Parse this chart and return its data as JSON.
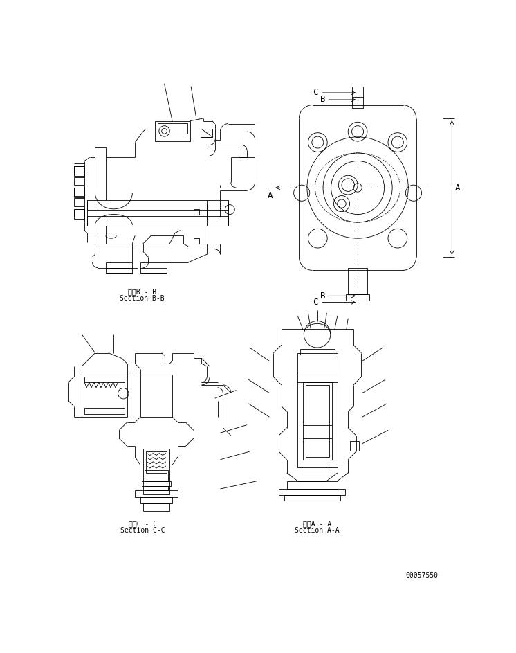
{
  "bg_color": "#ffffff",
  "line_color": "#000000",
  "fig_width": 7.46,
  "fig_height": 9.43,
  "dpi": 100,
  "label_bb_jp": "断面B - B",
  "label_bb_en": "Section B-B",
  "label_cc_jp": "断面C - C",
  "label_cc_en": "Section C-C",
  "label_aa_jp": "断面A - A",
  "label_aa_en": "Section A-A",
  "part_number": "00057550",
  "font_size_label": 7,
  "font_size_pn": 7
}
